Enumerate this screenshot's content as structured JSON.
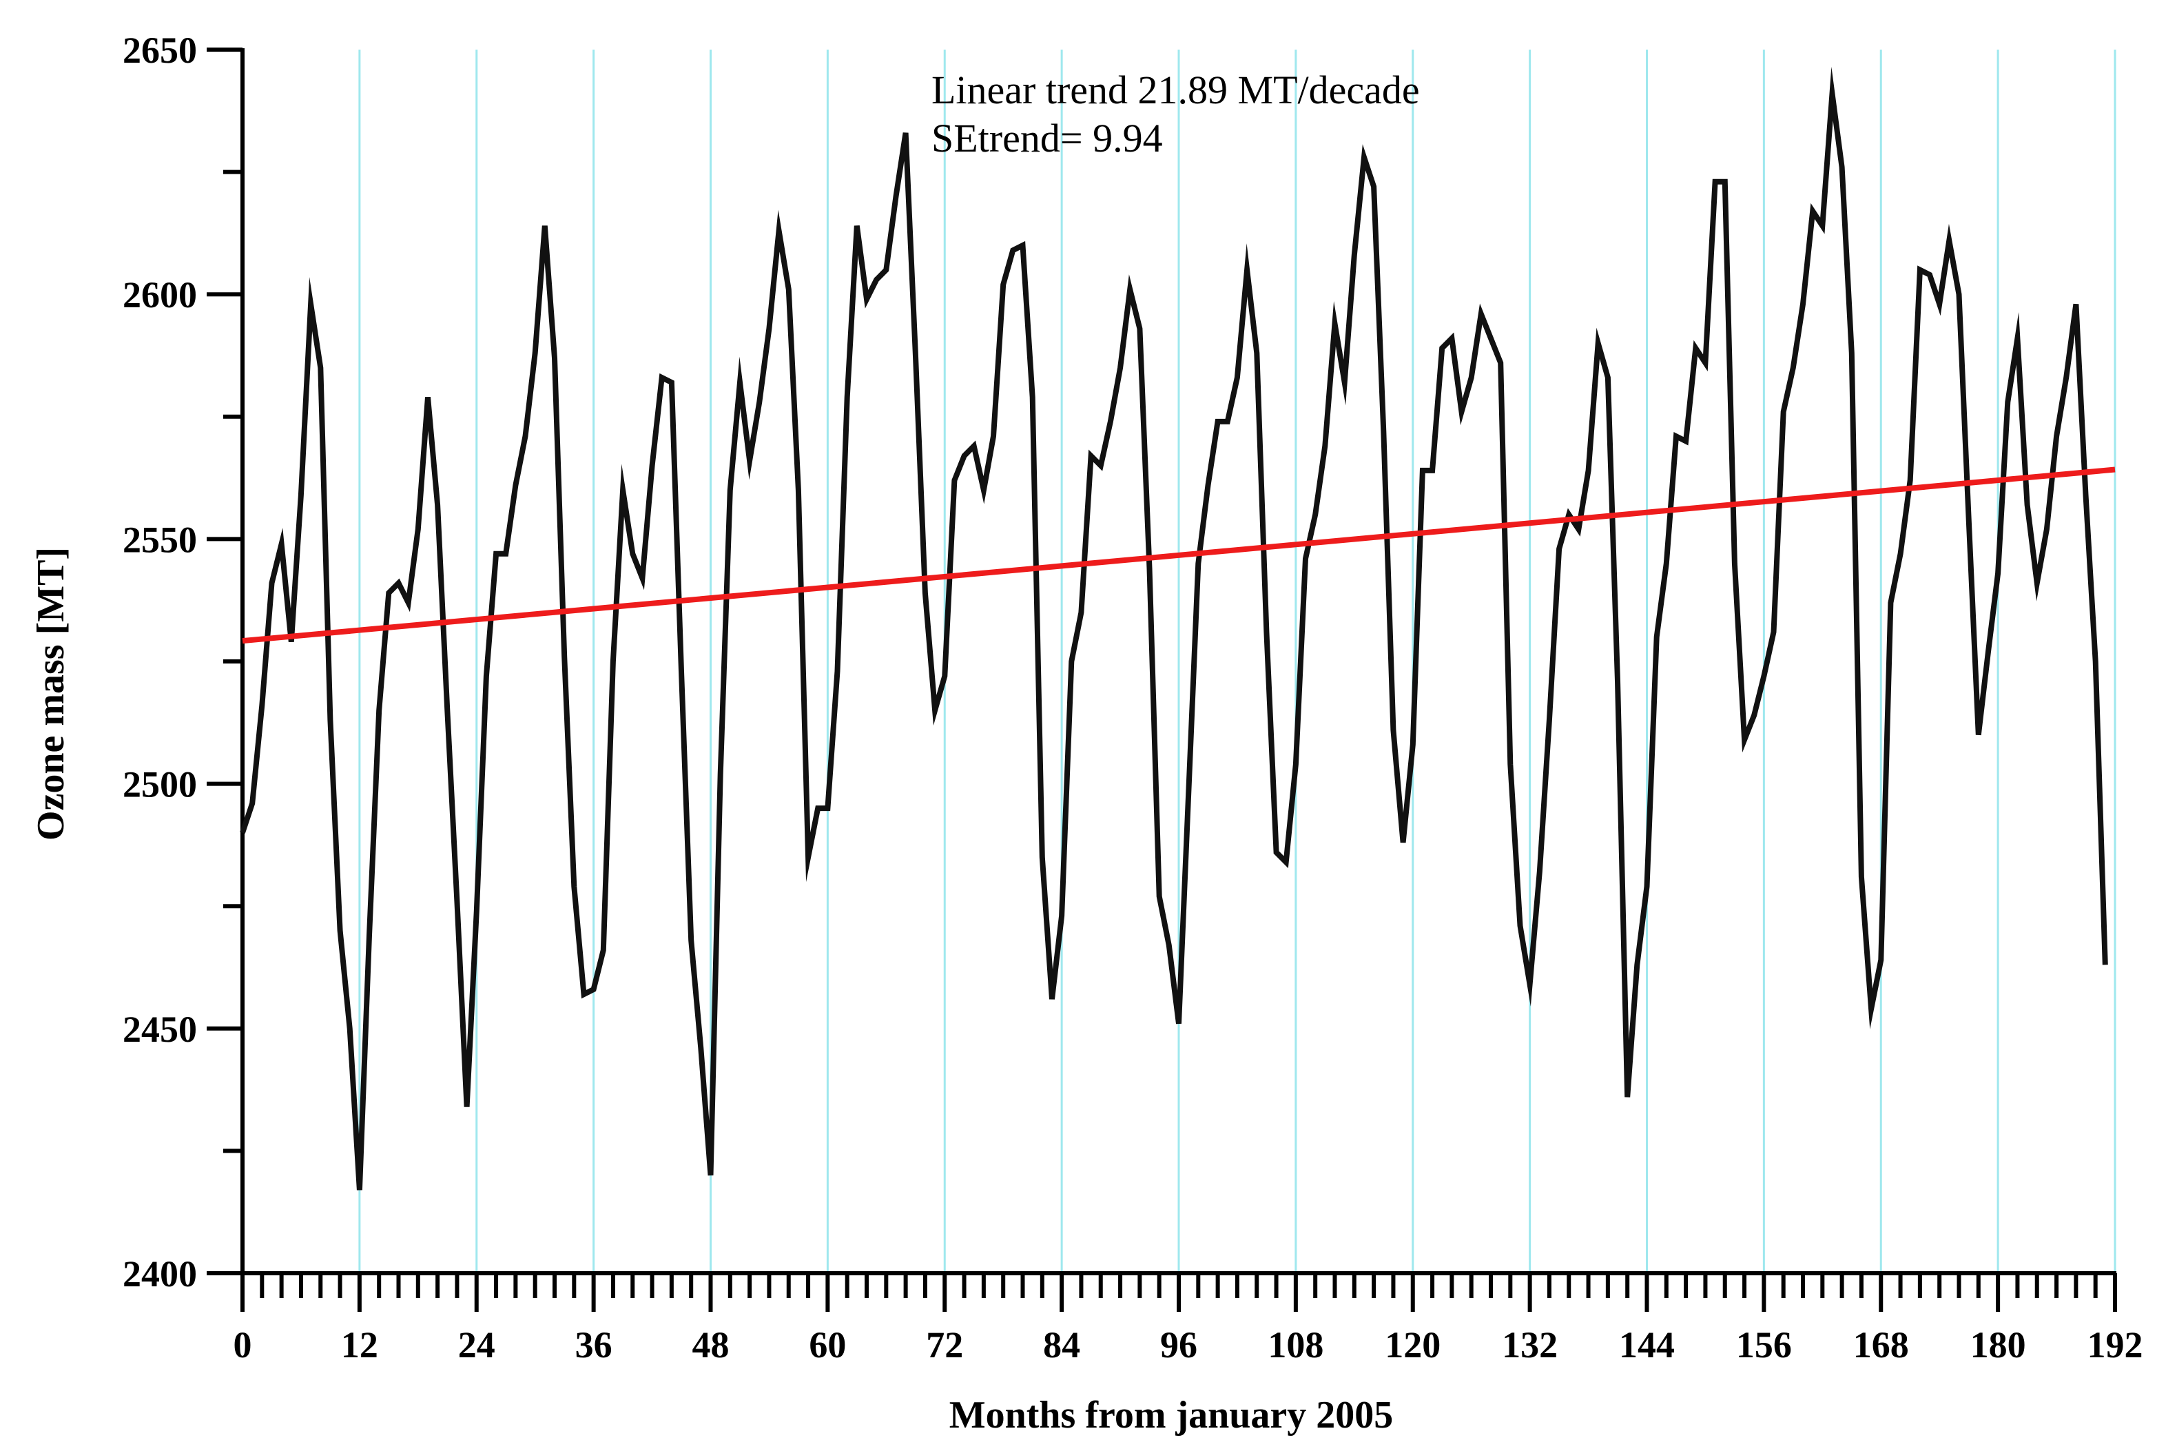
{
  "chart_data": {
    "type": "line",
    "title": "",
    "xlabel": "Months from january 2005",
    "ylabel": "Ozone mass [MT]",
    "xlim": [
      0,
      192
    ],
    "ylim": [
      2400,
      2650
    ],
    "x_ticks": [
      0,
      12,
      24,
      36,
      48,
      60,
      72,
      84,
      96,
      108,
      120,
      132,
      144,
      156,
      168,
      180,
      192
    ],
    "y_ticks": [
      2400,
      2450,
      2500,
      2550,
      2600,
      2650
    ],
    "y_minor_step": 25,
    "x_minor_step": 2,
    "vertical_grid_at": [
      12,
      24,
      36,
      48,
      60,
      72,
      84,
      96,
      108,
      120,
      132,
      144,
      156,
      168,
      180,
      192
    ],
    "annotations": [
      "Linear trend 21.89 MT/decade",
      "SEtrend=  9.94"
    ],
    "colors": {
      "series": "#111111",
      "trend": "#ee1c1c",
      "grid": "#9fe8ee",
      "axis": "#000000"
    },
    "series": [
      {
        "name": "Ozone mass",
        "x_start": 0,
        "values": [
          2490,
          2496,
          2516,
          2541,
          2549,
          2529,
          2559,
          2598,
          2585,
          2513,
          2470,
          2450,
          2417,
          2469,
          2515,
          2539,
          2541,
          2537,
          2552,
          2579,
          2557,
          2515,
          2476,
          2434,
          2474,
          2522,
          2547,
          2547,
          2561,
          2571,
          2588,
          2614,
          2587,
          2526,
          2479,
          2457,
          2458,
          2466,
          2525,
          2560,
          2547,
          2542,
          2565,
          2583,
          2582,
          2523,
          2468,
          2446,
          2420,
          2502,
          2560,
          2582,
          2566,
          2578,
          2593,
          2613,
          2601,
          2560,
          2485,
          2495,
          2495,
          2523,
          2579,
          2614,
          2599,
          2603,
          2605,
          2620,
          2633,
          2588,
          2539,
          2515,
          2522,
          2562,
          2567,
          2569,
          2560,
          2571,
          2602,
          2609,
          2610,
          2579,
          2485,
          2456,
          2473,
          2525,
          2535,
          2567,
          2565,
          2574,
          2585,
          2601,
          2593,
          2544,
          2477,
          2467,
          2451,
          2498,
          2545,
          2561,
          2574,
          2574,
          2583,
          2605,
          2588,
          2531,
          2486,
          2484,
          2504,
          2546,
          2555,
          2569,
          2594,
          2582,
          2608,
          2628,
          2622,
          2572,
          2511,
          2488,
          2508,
          2564,
          2564,
          2589,
          2591,
          2576,
          2583,
          2596,
          2591,
          2586,
          2504,
          2471,
          2459,
          2482,
          2513,
          2548,
          2555,
          2552,
          2564,
          2590,
          2583,
          2521,
          2436,
          2463,
          2479,
          2530,
          2545,
          2571,
          2570,
          2589,
          2586,
          2623,
          2623,
          2545,
          2509,
          2514,
          2522,
          2531,
          2576,
          2585,
          2598,
          2617,
          2614,
          2641,
          2626,
          2588,
          2481,
          2454,
          2464,
          2537,
          2547,
          2562,
          2605,
          2604,
          2598,
          2611,
          2600,
          2554,
          2510,
          2527,
          2543,
          2578,
          2591,
          2557,
          2541,
          2552,
          2571,
          2583,
          2598,
          2559,
          2525,
          2463
        ]
      }
    ],
    "trend_line": {
      "name": "Linear trend",
      "x": [
        0,
        192
      ],
      "y": [
        2529.2,
        2564.2
      ]
    }
  }
}
